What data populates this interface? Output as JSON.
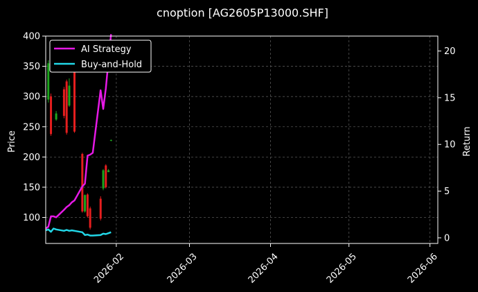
{
  "chart_data": {
    "type": "line",
    "title": "cnoption [AG2605P13000.SHF]",
    "ylabel_left": "Price",
    "ylabel_right": "Return",
    "xlabel": "",
    "grid": true,
    "legend_position": "top-left",
    "x_range": [
      "2026-01-05",
      "2026-06-04"
    ],
    "ylim_left": [
      57,
      400
    ],
    "ylim_right": [
      -0.6,
      21.6
    ],
    "x_ticks": [
      {
        "date": "2026-02-01",
        "label": "2026-02"
      },
      {
        "date": "2026-03-01",
        "label": "2026-03"
      },
      {
        "date": "2026-04-01",
        "label": "2026-04"
      },
      {
        "date": "2026-05-01",
        "label": "2026-05"
      },
      {
        "date": "2026-06-01",
        "label": "2026-06"
      }
    ],
    "y_ticks_left": [
      100,
      150,
      200,
      250,
      300,
      350,
      400
    ],
    "y_ticks_right": [
      0,
      5,
      10,
      15,
      20
    ],
    "colors": {
      "background": "#000000",
      "strategy": "#e619e6",
      "buy_hold": "#22d8e8",
      "candle_up": "#1ea51e",
      "candle_down": "#e51e1e",
      "grid": "#555555"
    },
    "series": [
      {
        "name": "AI Strategy",
        "axis": "right",
        "x": [
          "2026-01-05",
          "2026-01-06",
          "2026-01-07",
          "2026-01-08",
          "2026-01-09",
          "2026-01-12",
          "2026-01-13",
          "2026-01-14",
          "2026-01-15",
          "2026-01-16",
          "2026-01-19",
          "2026-01-20",
          "2026-01-21",
          "2026-01-22",
          "2026-01-23",
          "2026-01-26",
          "2026-01-27",
          "2026-01-28",
          "2026-01-29",
          "2026-01-30"
        ],
        "values": [
          1.0,
          1.2,
          2.3,
          2.3,
          2.2,
          3.0,
          3.3,
          3.5,
          3.8,
          4.0,
          5.5,
          5.8,
          8.8,
          8.9,
          9.1,
          15.8,
          13.8,
          16.0,
          19.0,
          21.8
        ]
      },
      {
        "name": "Buy-and-Hold",
        "axis": "right",
        "x": [
          "2026-01-05",
          "2026-01-06",
          "2026-01-07",
          "2026-01-08",
          "2026-01-09",
          "2026-01-12",
          "2026-01-13",
          "2026-01-14",
          "2026-01-15",
          "2026-01-16",
          "2026-01-19",
          "2026-01-20",
          "2026-01-21",
          "2026-01-22",
          "2026-01-23",
          "2026-01-26",
          "2026-01-27",
          "2026-01-28",
          "2026-01-29",
          "2026-01-30"
        ],
        "values": [
          0.8,
          0.9,
          0.65,
          1.0,
          0.9,
          0.75,
          0.85,
          0.75,
          0.8,
          0.75,
          0.6,
          0.3,
          0.35,
          0.25,
          0.25,
          0.3,
          0.45,
          0.4,
          0.5,
          0.6
        ]
      }
    ],
    "candles": [
      {
        "x": "2026-01-06",
        "open": 295,
        "close": 355,
        "high": 360,
        "low": 290
      },
      {
        "x": "2026-01-07",
        "open": 300,
        "close": 238,
        "high": 305,
        "low": 235
      },
      {
        "x": "2026-01-09",
        "open": 262,
        "close": 272,
        "high": 276,
        "low": 260
      },
      {
        "x": "2026-01-12",
        "open": 312,
        "close": 268,
        "high": 316,
        "low": 264
      },
      {
        "x": "2026-01-13",
        "open": 325,
        "close": 240,
        "high": 328,
        "low": 237
      },
      {
        "x": "2026-01-14",
        "open": 285,
        "close": 318,
        "high": 330,
        "low": 283
      },
      {
        "x": "2026-01-16",
        "open": 360,
        "close": 242,
        "high": 365,
        "low": 240
      },
      {
        "x": "2026-01-19",
        "open": 205,
        "close": 110,
        "high": 207,
        "low": 108
      },
      {
        "x": "2026-01-20",
        "open": 110,
        "close": 137,
        "high": 138,
        "low": 108
      },
      {
        "x": "2026-01-21",
        "open": 138,
        "close": 102,
        "high": 140,
        "low": 100
      },
      {
        "x": "2026-01-22",
        "open": 115,
        "close": 83,
        "high": 118,
        "low": 80
      },
      {
        "x": "2026-01-26",
        "open": 131,
        "close": 98,
        "high": 135,
        "low": 95
      },
      {
        "x": "2026-01-27",
        "open": 148,
        "close": 178,
        "high": 180,
        "low": 145
      },
      {
        "x": "2026-01-28",
        "open": 186,
        "close": 150,
        "high": 188,
        "low": 148
      },
      {
        "x": "2026-01-29",
        "open": 175,
        "close": 178,
        "high": 180,
        "low": 175
      },
      {
        "x": "2026-01-30",
        "open": 227,
        "close": 228,
        "high": 229,
        "low": 226
      }
    ]
  }
}
